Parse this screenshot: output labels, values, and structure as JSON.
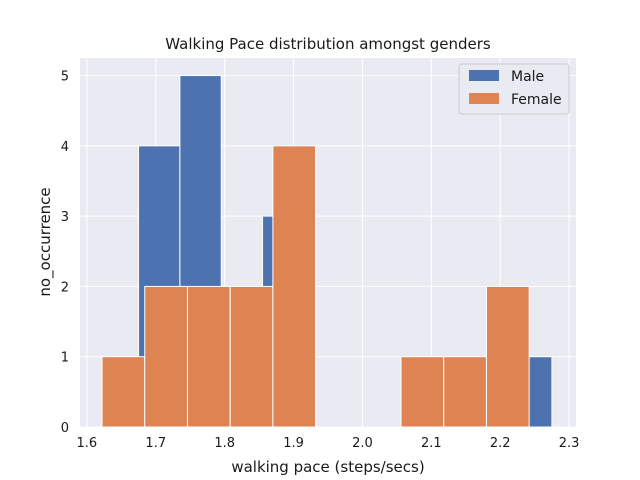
{
  "chart_data": {
    "type": "histogram",
    "title": "Walking Pace distribution amongst genders",
    "xlabel": "walking pace (steps/secs)",
    "ylabel": "no_occurrence",
    "xlim": [
      1.59,
      2.31
    ],
    "ylim": [
      0,
      5.25
    ],
    "xticks": [
      "1.6",
      "1.7",
      "1.8",
      "1.9",
      "2.0",
      "2.1",
      "2.2",
      "2.3"
    ],
    "xtick_values": [
      1.6,
      1.7,
      1.8,
      1.9,
      2.0,
      2.1,
      2.2,
      2.3
    ],
    "yticks": [
      "0",
      "1",
      "2",
      "3",
      "4",
      "5"
    ],
    "ytick_values": [
      0,
      1,
      2,
      3,
      4,
      5
    ],
    "grid": true,
    "legend_position": "top-right",
    "series": [
      {
        "name": "Male",
        "color": "#4c72b0",
        "bins": [
          {
            "x0": 1.675,
            "x1": 1.735,
            "count": 4
          },
          {
            "x0": 1.735,
            "x1": 1.795,
            "count": 5
          },
          {
            "x0": 1.795,
            "x1": 1.855,
            "count": 2
          },
          {
            "x0": 1.855,
            "x1": 1.915,
            "count": 3
          },
          {
            "x0": 2.215,
            "x1": 2.275,
            "count": 1
          }
        ]
      },
      {
        "name": "Female",
        "color": "#dd8452",
        "bins": [
          {
            "x0": 1.622,
            "x1": 1.684,
            "count": 1
          },
          {
            "x0": 1.684,
            "x1": 1.746,
            "count": 2
          },
          {
            "x0": 1.746,
            "x1": 1.808,
            "count": 2
          },
          {
            "x0": 1.808,
            "x1": 1.87,
            "count": 2
          },
          {
            "x0": 1.87,
            "x1": 1.932,
            "count": 4
          },
          {
            "x0": 2.056,
            "x1": 2.118,
            "count": 1
          },
          {
            "x0": 2.118,
            "x1": 2.18,
            "count": 1
          },
          {
            "x0": 2.18,
            "x1": 2.242,
            "count": 2
          }
        ]
      }
    ]
  }
}
